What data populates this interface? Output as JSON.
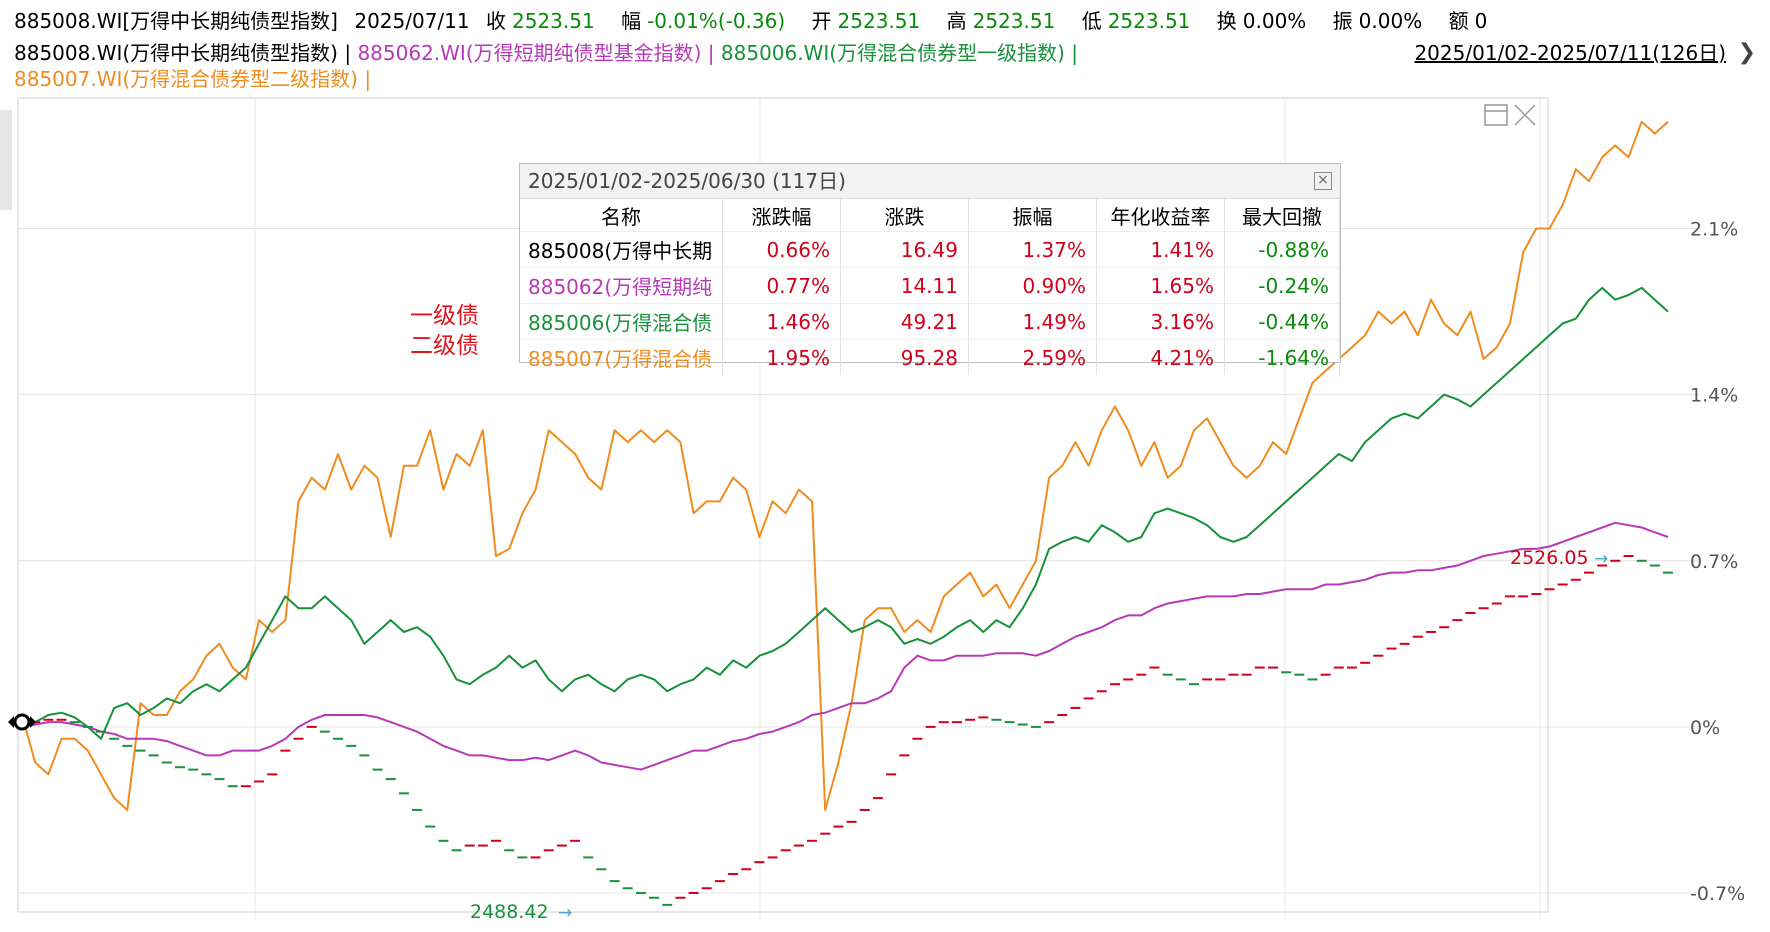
{
  "quote_bar": {
    "symbol": "885008.WI[万得中长期纯债型指数]",
    "date": "2025/07/11",
    "close_label": "收",
    "close_value": "2523.51",
    "change_label": "幅",
    "change_value": "-0.01%(-0.36)",
    "open_label": "开",
    "open_value": "2523.51",
    "high_label": "高",
    "high_value": "2523.51",
    "low_label": "低",
    "low_value": "2523.51",
    "turnover_label": "换",
    "turnover_value": "0.00%",
    "amplitude_label": "振",
    "amplitude_value": "0.00%",
    "amount_label": "额",
    "amount_value": "0"
  },
  "legend": [
    {
      "text": "885008.WI(万得中长期纯债型指数) |",
      "color": "#000000"
    },
    {
      "text": "885062.WI(万得短期纯债型基金指数) |",
      "color": "#b63ab8"
    },
    {
      "text": "885006.WI(万得混合债券型一级指数) |",
      "color": "#17913a"
    },
    {
      "text": "885007.WI(万得混合债券型二级指数) |",
      "color": "#f08c1e"
    }
  ],
  "date_range": "2025/01/02-2025/07/11(126日)",
  "notes": [
    "一级债",
    "二级债"
  ],
  "stats": {
    "title": "2025/01/02-2025/06/30 (117日)",
    "columns": [
      "名称",
      "涨跌幅",
      "涨跌",
      "振幅",
      "年化收益率",
      "最大回撤"
    ],
    "rows": [
      {
        "name": "885008(万得中长期",
        "color": "#000000",
        "pct": "0.66%",
        "chg": "16.49",
        "amp": "1.37%",
        "ann": "1.41%",
        "dd": "-0.88%"
      },
      {
        "name": "885062(万得短期纯",
        "color": "#b63ab8",
        "pct": "0.77%",
        "chg": "14.11",
        "amp": "0.90%",
        "ann": "1.65%",
        "dd": "-0.24%"
      },
      {
        "name": "885006(万得混合债",
        "color": "#17913a",
        "pct": "1.46%",
        "chg": "49.21",
        "amp": "1.49%",
        "ann": "3.16%",
        "dd": "-0.44%"
      },
      {
        "name": "885007(万得混合债",
        "color": "#f08c1e",
        "pct": "1.95%",
        "chg": "95.28",
        "amp": "2.59%",
        "ann": "4.21%",
        "dd": "-1.64%"
      }
    ]
  },
  "chart_data": {
    "type": "line",
    "y_tick_labels": [
      "2.1%",
      "1.4%",
      "0.7%",
      "0%",
      "-0.7%"
    ],
    "y_ticks": [
      2.1,
      1.4,
      0.7,
      0,
      -0.7
    ],
    "ylim": [
      -0.78,
      2.65
    ],
    "x_count": 126,
    "annotations": {
      "high": "2526.05",
      "low": "2488.42"
    },
    "series": [
      {
        "code": "885007",
        "color": "#f08c1e",
        "values": [
          0.05,
          -0.15,
          -0.2,
          -0.05,
          -0.05,
          -0.1,
          -0.2,
          -0.3,
          -0.35,
          0.1,
          0.05,
          0.05,
          0.15,
          0.2,
          0.3,
          0.35,
          0.25,
          0.2,
          0.45,
          0.4,
          0.45,
          0.95,
          1.05,
          1.0,
          1.15,
          1.0,
          1.1,
          1.05,
          0.8,
          1.1,
          1.1,
          1.25,
          1.0,
          1.15,
          1.1,
          1.25,
          0.72,
          0.75,
          0.9,
          1.0,
          1.25,
          1.2,
          1.15,
          1.05,
          1.0,
          1.25,
          1.2,
          1.25,
          1.2,
          1.25,
          1.2,
          0.9,
          0.95,
          0.95,
          1.05,
          1.0,
          0.8,
          0.95,
          0.9,
          1.0,
          0.95,
          -0.35,
          -0.15,
          0.1,
          0.45,
          0.5,
          0.5,
          0.4,
          0.45,
          0.4,
          0.55,
          0.6,
          0.65,
          0.55,
          0.6,
          0.5,
          0.6,
          0.7,
          1.05,
          1.1,
          1.2,
          1.1,
          1.25,
          1.35,
          1.25,
          1.1,
          1.2,
          1.05,
          1.1,
          1.25,
          1.3,
          1.2,
          1.1,
          1.05,
          1.1,
          1.2,
          1.15,
          1.3,
          1.45,
          1.5,
          1.55,
          1.6,
          1.65,
          1.75,
          1.7,
          1.75,
          1.65,
          1.8,
          1.7,
          1.65,
          1.75,
          1.55,
          1.6,
          1.7,
          2.0,
          2.1,
          2.1,
          2.2,
          2.35,
          2.3,
          2.4,
          2.45,
          2.4,
          2.55,
          2.5,
          2.55
        ]
      },
      {
        "code": "885006",
        "color": "#17913a",
        "values": [
          0.0,
          0.02,
          0.05,
          0.06,
          0.04,
          0.0,
          -0.05,
          0.08,
          0.1,
          0.05,
          0.08,
          0.12,
          0.1,
          0.15,
          0.18,
          0.15,
          0.2,
          0.25,
          0.35,
          0.45,
          0.55,
          0.5,
          0.5,
          0.55,
          0.5,
          0.45,
          0.35,
          0.4,
          0.45,
          0.4,
          0.42,
          0.38,
          0.3,
          0.2,
          0.18,
          0.22,
          0.25,
          0.3,
          0.25,
          0.28,
          0.2,
          0.15,
          0.2,
          0.22,
          0.18,
          0.15,
          0.2,
          0.22,
          0.2,
          0.15,
          0.18,
          0.2,
          0.25,
          0.22,
          0.28,
          0.25,
          0.3,
          0.32,
          0.35,
          0.4,
          0.45,
          0.5,
          0.45,
          0.4,
          0.42,
          0.45,
          0.42,
          0.35,
          0.37,
          0.35,
          0.38,
          0.42,
          0.45,
          0.4,
          0.45,
          0.42,
          0.5,
          0.6,
          0.75,
          0.78,
          0.8,
          0.78,
          0.85,
          0.82,
          0.78,
          0.8,
          0.9,
          0.92,
          0.9,
          0.88,
          0.85,
          0.8,
          0.78,
          0.8,
          0.85,
          0.9,
          0.95,
          1.0,
          1.05,
          1.1,
          1.15,
          1.12,
          1.2,
          1.25,
          1.3,
          1.32,
          1.3,
          1.35,
          1.4,
          1.38,
          1.35,
          1.4,
          1.45,
          1.5,
          1.55,
          1.6,
          1.65,
          1.7,
          1.72,
          1.8,
          1.85,
          1.8,
          1.82,
          1.85,
          1.8,
          1.75
        ]
      },
      {
        "code": "885062",
        "color": "#b63ab8",
        "values": [
          0.0,
          0.01,
          0.02,
          0.02,
          0.01,
          0.0,
          -0.02,
          -0.03,
          -0.05,
          -0.05,
          -0.05,
          -0.06,
          -0.08,
          -0.1,
          -0.12,
          -0.12,
          -0.1,
          -0.1,
          -0.1,
          -0.08,
          -0.05,
          0.0,
          0.03,
          0.05,
          0.05,
          0.05,
          0.05,
          0.04,
          0.02,
          0.0,
          -0.02,
          -0.05,
          -0.08,
          -0.1,
          -0.12,
          -0.12,
          -0.13,
          -0.14,
          -0.14,
          -0.13,
          -0.14,
          -0.12,
          -0.1,
          -0.12,
          -0.15,
          -0.16,
          -0.17,
          -0.18,
          -0.16,
          -0.14,
          -0.12,
          -0.1,
          -0.1,
          -0.08,
          -0.06,
          -0.05,
          -0.03,
          -0.02,
          0.0,
          0.02,
          0.05,
          0.06,
          0.08,
          0.1,
          0.1,
          0.12,
          0.15,
          0.25,
          0.3,
          0.28,
          0.28,
          0.3,
          0.3,
          0.3,
          0.31,
          0.31,
          0.31,
          0.3,
          0.32,
          0.35,
          0.38,
          0.4,
          0.42,
          0.45,
          0.47,
          0.47,
          0.5,
          0.52,
          0.53,
          0.54,
          0.55,
          0.55,
          0.55,
          0.56,
          0.56,
          0.57,
          0.58,
          0.58,
          0.58,
          0.6,
          0.6,
          0.61,
          0.62,
          0.64,
          0.65,
          0.65,
          0.66,
          0.66,
          0.67,
          0.68,
          0.7,
          0.72,
          0.73,
          0.74,
          0.75,
          0.75,
          0.76,
          0.78,
          0.8,
          0.82,
          0.84,
          0.86,
          0.85,
          0.84,
          0.82,
          0.8
        ]
      },
      {
        "code": "885008",
        "color": "#d0021b",
        "style": "ticks",
        "values": [
          0.0,
          0.02,
          0.03,
          0.03,
          0.02,
          0.0,
          -0.02,
          -0.05,
          -0.08,
          -0.1,
          -0.12,
          -0.15,
          -0.17,
          -0.18,
          -0.2,
          -0.22,
          -0.25,
          -0.25,
          -0.23,
          -0.2,
          -0.1,
          -0.05,
          0.0,
          -0.02,
          -0.05,
          -0.08,
          -0.12,
          -0.18,
          -0.22,
          -0.28,
          -0.35,
          -0.42,
          -0.48,
          -0.52,
          -0.5,
          -0.5,
          -0.48,
          -0.52,
          -0.55,
          -0.55,
          -0.52,
          -0.5,
          -0.48,
          -0.55,
          -0.6,
          -0.65,
          -0.68,
          -0.7,
          -0.72,
          -0.75,
          -0.72,
          -0.7,
          -0.68,
          -0.65,
          -0.62,
          -0.6,
          -0.57,
          -0.55,
          -0.52,
          -0.5,
          -0.48,
          -0.45,
          -0.42,
          -0.4,
          -0.35,
          -0.3,
          -0.2,
          -0.12,
          -0.05,
          0.0,
          0.02,
          0.02,
          0.03,
          0.04,
          0.03,
          0.02,
          0.01,
          0.0,
          0.02,
          0.05,
          0.08,
          0.12,
          0.15,
          0.18,
          0.2,
          0.22,
          0.25,
          0.22,
          0.2,
          0.18,
          0.2,
          0.2,
          0.22,
          0.22,
          0.25,
          0.25,
          0.23,
          0.22,
          0.2,
          0.22,
          0.25,
          0.25,
          0.27,
          0.3,
          0.33,
          0.35,
          0.38,
          0.4,
          0.42,
          0.45,
          0.48,
          0.5,
          0.52,
          0.55,
          0.55,
          0.56,
          0.58,
          0.6,
          0.62,
          0.65,
          0.68,
          0.7,
          0.72,
          0.7,
          0.68,
          0.65
        ]
      }
    ]
  }
}
